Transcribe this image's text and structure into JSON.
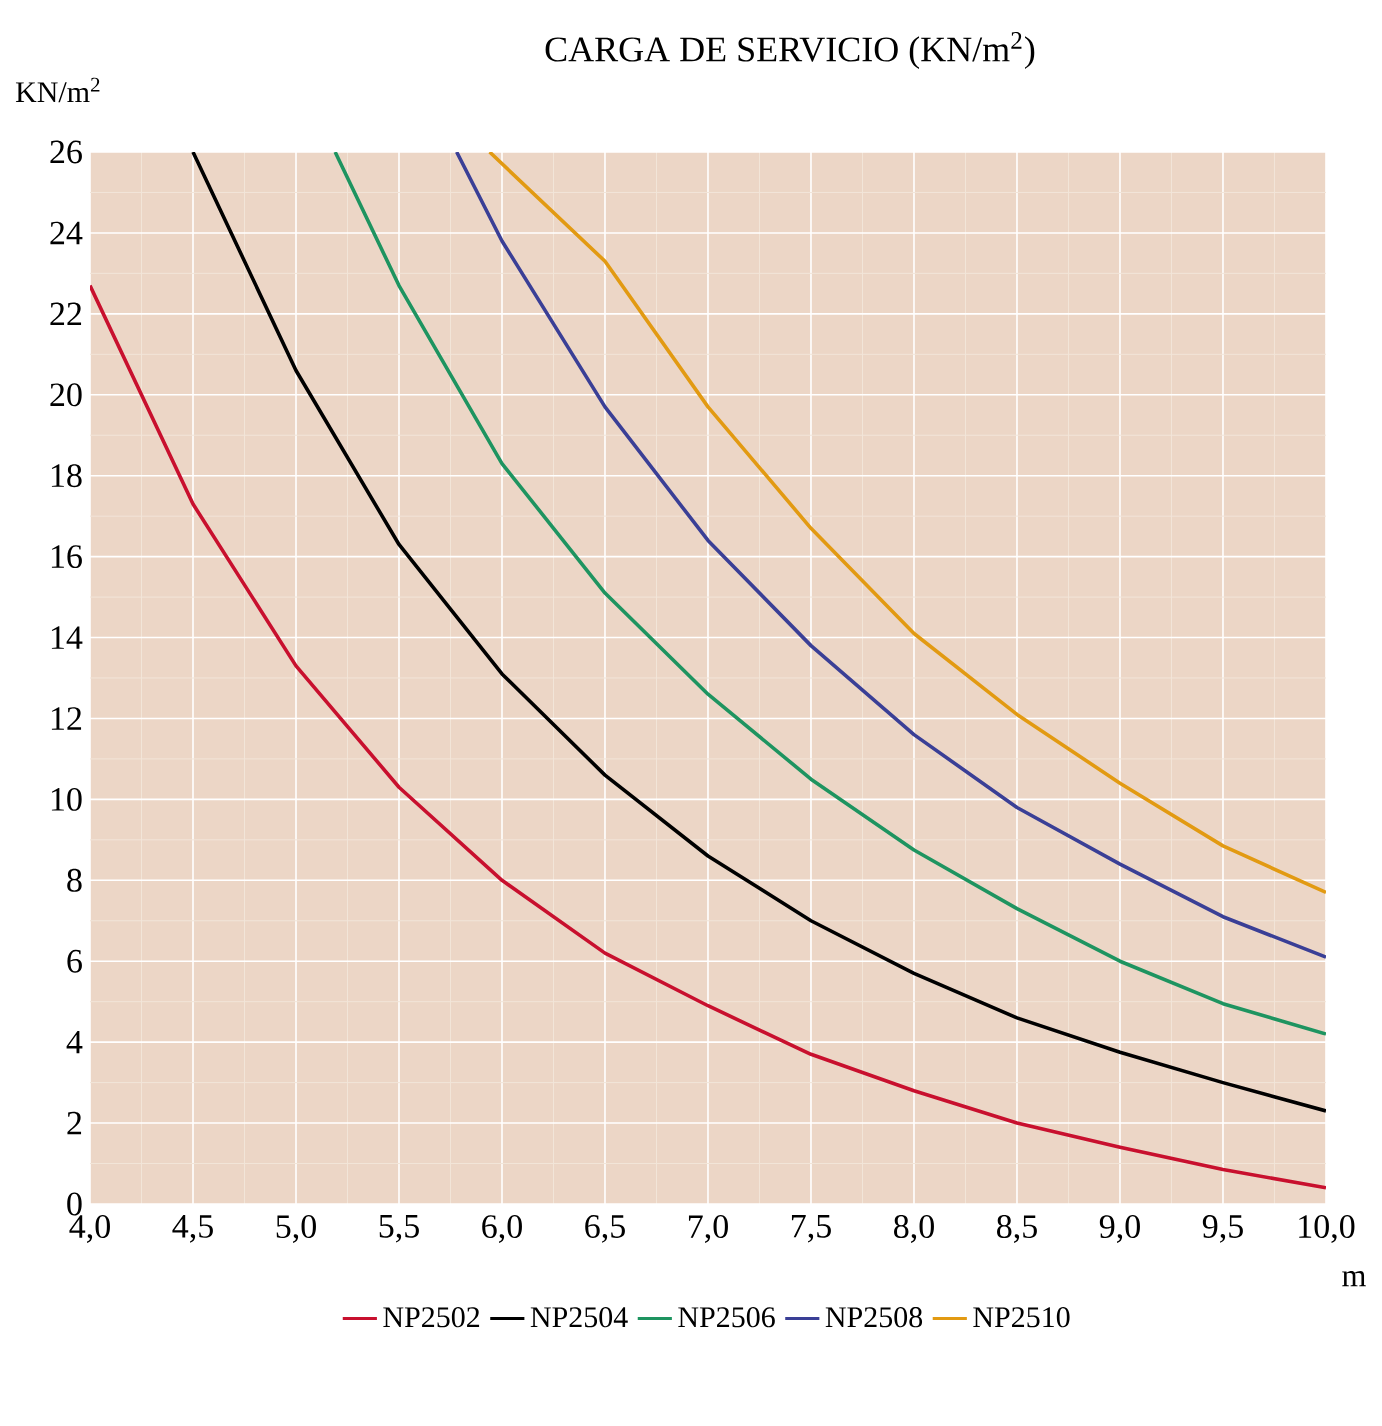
{
  "chart_data": {
    "type": "line",
    "title": "CARGA DE SERVICIO  (KN/m$^{2}$)",
    "ylabel": "KN/m$^{2}$",
    "xlabel": "m",
    "xlim": [
      4,
      10
    ],
    "ylim": [
      0,
      26
    ],
    "xticks": [
      {
        "value": 4,
        "label": "4,0"
      },
      {
        "value": 4.5,
        "label": "4,5"
      },
      {
        "value": 5,
        "label": "5,0"
      },
      {
        "value": 5.5,
        "label": "5,5"
      },
      {
        "value": 6,
        "label": "6,0"
      },
      {
        "value": 6.5,
        "label": "6,5"
      },
      {
        "value": 7,
        "label": "7,0"
      },
      {
        "value": 7.5,
        "label": "7,5"
      },
      {
        "value": 8,
        "label": "8,0"
      },
      {
        "value": 8.5,
        "label": "8,5"
      },
      {
        "value": 9,
        "label": "9,0"
      },
      {
        "value": 9.5,
        "label": "9,5"
      },
      {
        "value": 10,
        "label": "10,0"
      }
    ],
    "yticks": [
      0,
      2,
      4,
      6,
      8,
      10,
      12,
      14,
      16,
      18,
      20,
      22,
      24,
      26
    ],
    "grid": true,
    "legend": "bottom",
    "marker": "none",
    "line_style": "solid",
    "series": [
      {
        "name": "NP2502",
        "color": "#c8102e",
        "x": [
          4,
          4.5,
          5,
          5.5,
          6,
          6.5,
          7,
          7.5,
          8,
          8.5,
          9,
          9.5,
          10
        ],
        "values": [
          22.7,
          17.3,
          13.3,
          10.3,
          8.0,
          6.2,
          4.9,
          3.7,
          2.8,
          2.0,
          1.4,
          0.85,
          0.4
        ]
      },
      {
        "name": "NP2504",
        "color": "#000000",
        "x": [
          4.5,
          5,
          5.5,
          6,
          6.5,
          7,
          7.5,
          8,
          8.5,
          9,
          9.5,
          10
        ],
        "values": [
          26,
          20.6,
          16.3,
          13.1,
          10.6,
          8.6,
          7.0,
          5.7,
          4.6,
          3.75,
          3.0,
          2.3
        ]
      },
      {
        "name": "NP2506",
        "color": "#1e9460",
        "x": [
          5.19,
          5.5,
          6,
          6.5,
          7,
          7.5,
          8,
          8.5,
          9,
          9.5,
          10
        ],
        "values": [
          26,
          22.7,
          18.3,
          15.1,
          12.6,
          10.5,
          8.75,
          7.3,
          6.0,
          4.95,
          4.2
        ]
      },
      {
        "name": "NP2508",
        "color": "#3a3f96",
        "x": [
          5.78,
          6,
          6.5,
          7,
          7.5,
          8,
          8.5,
          9,
          9.5,
          10
        ],
        "values": [
          26,
          23.8,
          19.7,
          16.4,
          13.8,
          11.6,
          9.8,
          8.4,
          7.1,
          6.1
        ]
      },
      {
        "name": "NP2510",
        "color": "#e29a12",
        "x": [
          5.94,
          6.5,
          7,
          7.5,
          8,
          8.5,
          9,
          9.5,
          10
        ],
        "values": [
          26,
          23.3,
          19.7,
          16.7,
          14.1,
          12.1,
          10.4,
          8.85,
          7.7
        ]
      }
    ]
  }
}
